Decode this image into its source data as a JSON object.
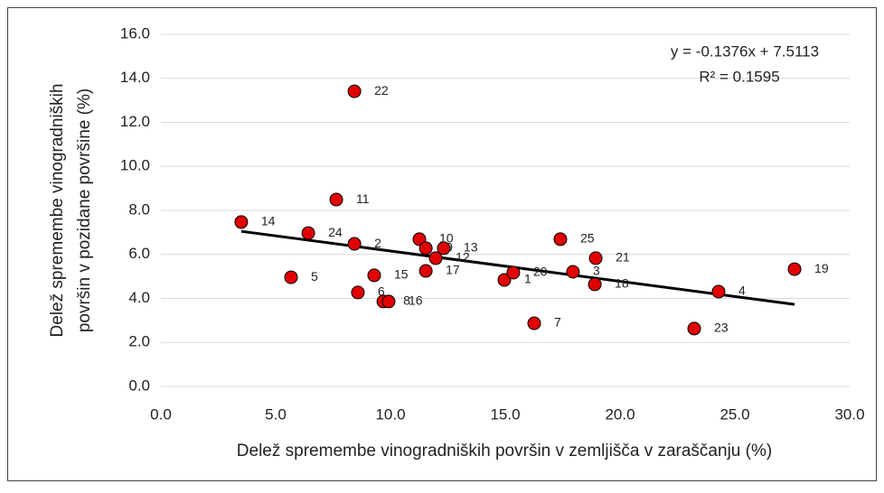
{
  "chart_data": {
    "type": "scatter",
    "xlabel": "Delež spremembe vinogradniških površin v zemljišča v zaraščanju (%)",
    "ylabel": [
      "Delež spremembe vinogradniških",
      "površin v pozidane površine (%)"
    ],
    "annotations": [
      "y = -0.1376x + 7.5113",
      "R² = 0.1595"
    ],
    "point_labels": [
      "14",
      "24",
      "2",
      "22",
      "11",
      "5",
      "15",
      "6",
      "8",
      "16",
      "10",
      "9",
      "13",
      "12",
      "17",
      "1",
      "20",
      "25",
      "21",
      "3",
      "18",
      "7",
      "4",
      "23",
      "19"
    ],
    "x": [
      3.5,
      6.42,
      8.43,
      8.43,
      7.64,
      5.67,
      9.29,
      8.58,
      9.69,
      9.92,
      11.26,
      11.54,
      12.32,
      11.97,
      11.54,
      14.96,
      15.35,
      17.4,
      18.94,
      17.95,
      18.9,
      16.26,
      24.29,
      23.23,
      27.6
    ],
    "values": [
      7.47,
      6.97,
      6.48,
      13.41,
      8.49,
      4.96,
      5.05,
      4.27,
      3.86,
      3.86,
      6.69,
      6.28,
      6.28,
      5.83,
      5.25,
      4.84,
      5.17,
      6.69,
      5.83,
      5.21,
      4.64,
      2.87,
      4.31,
      2.63,
      5.33
    ],
    "color": "#e00000",
    "xlim": [
      0,
      30
    ],
    "xticks": [
      {
        "value": 0,
        "label": "0.0"
      },
      {
        "value": 5,
        "label": "5.0"
      },
      {
        "value": 10,
        "label": "10.0"
      },
      {
        "value": 15,
        "label": "15.0"
      },
      {
        "value": 20,
        "label": "20.0"
      },
      {
        "value": 25,
        "label": "25.0"
      },
      {
        "value": 30,
        "label": "30.0"
      }
    ],
    "ylim": [
      0,
      16
    ],
    "yticks": [
      {
        "value": 0,
        "label": "0.0"
      },
      {
        "value": 2,
        "label": "2.0"
      },
      {
        "value": 4,
        "label": "4.0"
      },
      {
        "value": 6,
        "label": "6.0"
      },
      {
        "value": 8,
        "label": "8.0"
      },
      {
        "value": 10,
        "label": "10.0"
      },
      {
        "value": 12,
        "label": "12.0"
      },
      {
        "value": 14,
        "label": "14.0"
      },
      {
        "value": 16,
        "label": "16.0"
      }
    ],
    "grid": true,
    "trendline": true
  }
}
